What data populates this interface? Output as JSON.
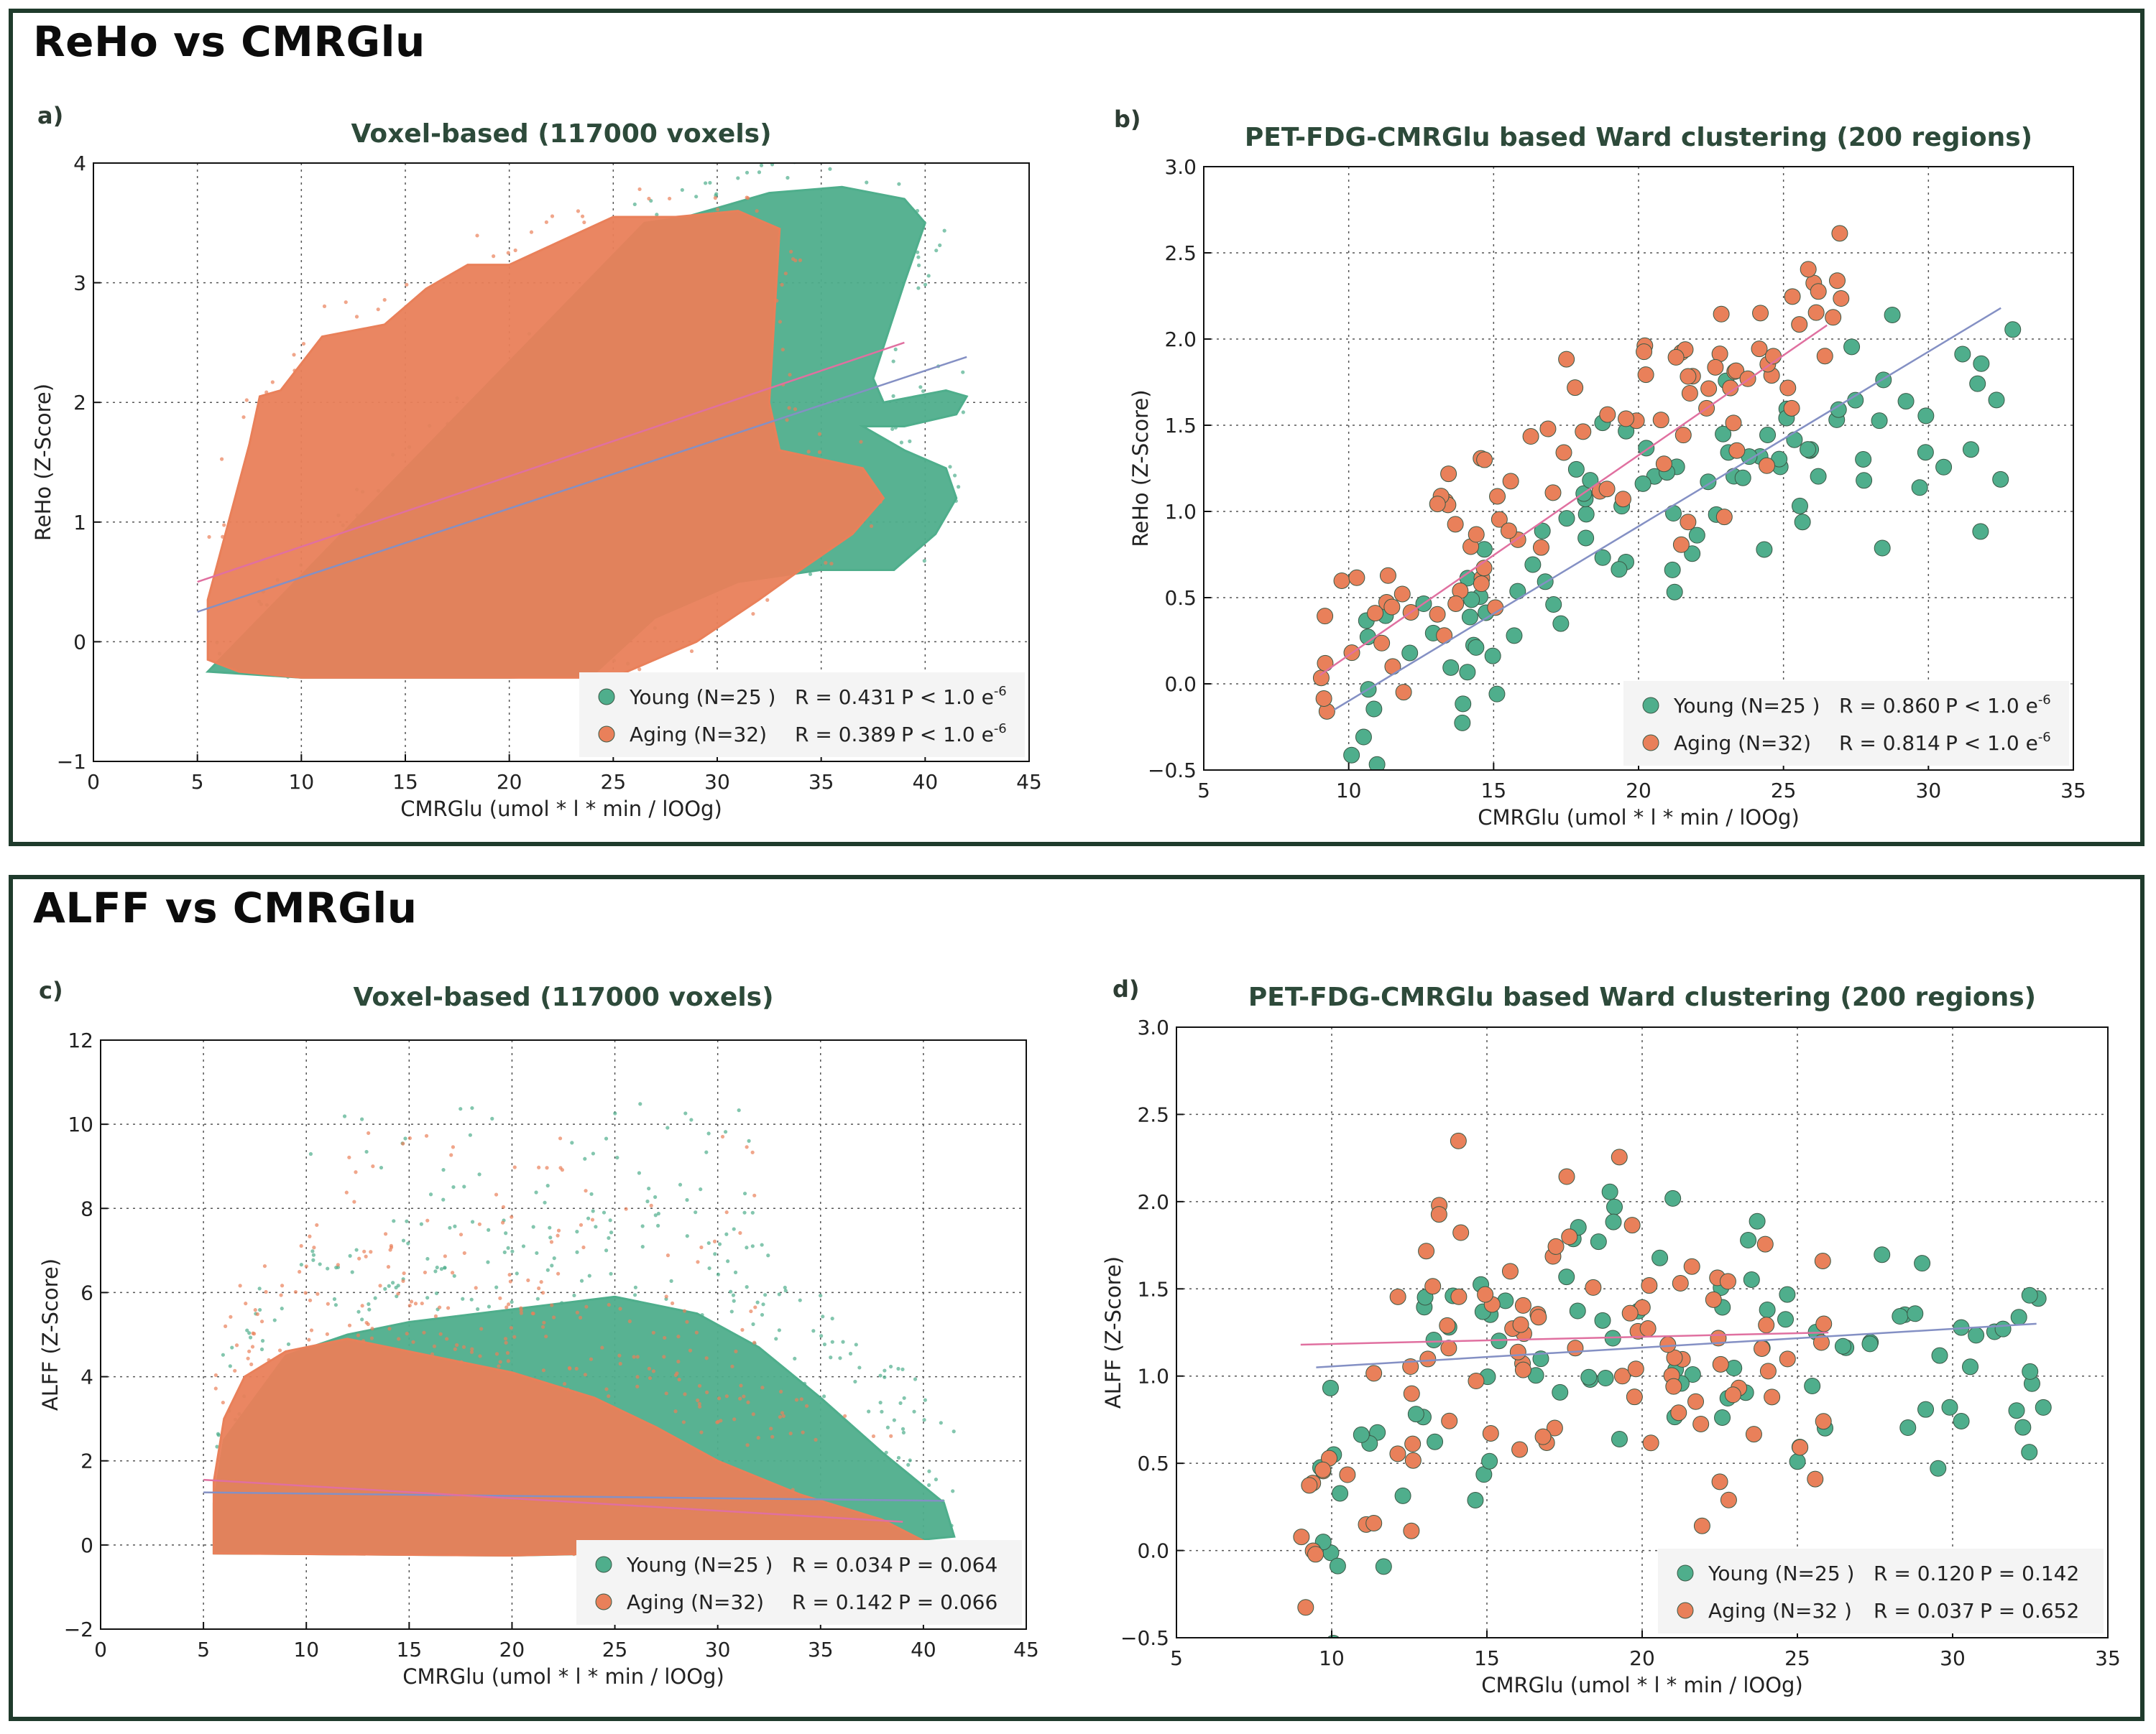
{
  "panels": [
    {
      "title": "ReHo vs CMRGlu"
    },
    {
      "title": "ALFF vs CMRGlu"
    }
  ],
  "colors": {
    "young": "#4fae8c",
    "aging": "#e9805a",
    "young_line": "#8490c4",
    "aging_line": "#e070a0",
    "frame": "#1f3b2c",
    "title_text": "#2d4a3a"
  },
  "chart_data": [
    {
      "type": "scatter",
      "letter": "a)",
      "title": "Voxel-based (117000 voxels)",
      "xlabel": "CMRGlu (umol * l * min / lOOg)",
      "ylabel": "ReHo (Z-Score)",
      "xlim": [
        0,
        45
      ],
      "ylim": [
        -1,
        4
      ],
      "xticks": [
        0,
        5,
        10,
        15,
        20,
        25,
        30,
        35,
        40,
        45
      ],
      "yticks": [
        -1,
        0,
        1,
        2,
        3,
        4
      ],
      "ytick_labels": [
        "−1",
        "0",
        "1",
        "2",
        "3",
        "4"
      ],
      "grid": true,
      "legend_position": "lower-right",
      "series": [
        {
          "name": "Young (N=25 )",
          "stat_r": "R = 0.431",
          "stat_p": "P < 1.0 e",
          "stat_exp": "-6",
          "marker": "dense",
          "cloud_outline": [
            [
              5.5,
              -0.25
            ],
            [
              10,
              -0.3
            ],
            [
              20,
              -0.3
            ],
            [
              24,
              -0.28
            ],
            [
              27,
              0.2
            ],
            [
              31,
              0.5
            ],
            [
              35,
              0.6
            ],
            [
              38.5,
              0.6
            ],
            [
              40.5,
              0.9
            ],
            [
              41.5,
              1.2
            ],
            [
              41,
              1.45
            ],
            [
              39,
              1.6
            ],
            [
              37,
              1.8
            ],
            [
              39,
              1.8
            ],
            [
              41.5,
              1.9
            ],
            [
              42,
              2.05
            ],
            [
              41,
              2.1
            ],
            [
              38,
              2.0
            ],
            [
              37.5,
              2.2
            ],
            [
              39,
              3.0
            ],
            [
              40,
              3.5
            ],
            [
              39,
              3.7
            ],
            [
              36,
              3.8
            ],
            [
              32.5,
              3.75
            ],
            [
              28.5,
              3.55
            ],
            [
              26.5,
              3.5
            ]
          ],
          "fit_line": [
            [
              5,
              0.25
            ],
            [
              42,
              2.38
            ]
          ]
        },
        {
          "name": "Aging (N=32)",
          "stat_r": "R = 0.389",
          "stat_p": "P < 1.0 e",
          "stat_exp": "-6",
          "marker": "dense",
          "cloud_outline": [
            [
              5.5,
              -0.15
            ],
            [
              7,
              -0.25
            ],
            [
              10,
              -0.3
            ],
            [
              20,
              -0.3
            ],
            [
              25,
              -0.3
            ],
            [
              29,
              0.0
            ],
            [
              32,
              0.35
            ],
            [
              34,
              0.6
            ],
            [
              36.5,
              0.9
            ],
            [
              38,
              1.2
            ],
            [
              37,
              1.45
            ],
            [
              33,
              1.6
            ],
            [
              32.5,
              2.0
            ],
            [
              33,
              3.45
            ],
            [
              31,
              3.6
            ],
            [
              28,
              3.55
            ],
            [
              25,
              3.55
            ],
            [
              22.5,
              3.35
            ],
            [
              20,
              3.15
            ],
            [
              18,
              3.15
            ],
            [
              16,
              2.95
            ],
            [
              14,
              2.65
            ],
            [
              11,
              2.55
            ],
            [
              9,
              2.1
            ],
            [
              8,
              2.05
            ],
            [
              7.5,
              1.65
            ],
            [
              6.5,
              1.0
            ],
            [
              5.5,
              0.35
            ]
          ],
          "fit_line": [
            [
              5,
              0.5
            ],
            [
              39,
              2.5
            ]
          ]
        }
      ]
    },
    {
      "type": "scatter",
      "letter": "b)",
      "title": "PET-FDG-CMRGlu based Ward clustering (200 regions)",
      "xlabel": "CMRGlu (umol * l * min / lOOg)",
      "ylabel": "ReHo (Z-Score)",
      "xlim": [
        5,
        35
      ],
      "ylim": [
        -0.5,
        3.0
      ],
      "xticks": [
        5,
        10,
        15,
        20,
        25,
        30,
        35
      ],
      "yticks": [
        -0.5,
        0.0,
        0.5,
        1.0,
        1.5,
        2.0,
        2.5,
        3.0
      ],
      "ytick_labels": [
        "−0.5",
        "0.0",
        "0.5",
        "1.0",
        "1.5",
        "2.0",
        "2.5",
        "3.0"
      ],
      "grid": true,
      "legend_position": "lower-right",
      "series": [
        {
          "name": "Young (N=25 )",
          "stat_r": "R = 0.860",
          "stat_p": "P < 1.0 e",
          "stat_exp": "-6",
          "marker": "circle",
          "point_count": 200,
          "trend": [
            [
              9.5,
              -0.15
            ],
            [
              15,
              0.45
            ],
            [
              20,
              1.05
            ],
            [
              25,
              1.35
            ],
            [
              30,
              1.6
            ],
            [
              33,
              1.45
            ]
          ],
          "spread": 0.28,
          "fit_line": [
            [
              9.5,
              -0.15
            ],
            [
              32.5,
              2.18
            ]
          ]
        },
        {
          "name": "Aging (N=32)",
          "stat_r": "R = 0.814",
          "stat_p": "P < 1.0 e",
          "stat_exp": "-6",
          "marker": "circle",
          "point_count": 200,
          "trend": [
            [
              9,
              0.05
            ],
            [
              13,
              0.55
            ],
            [
              17,
              1.15
            ],
            [
              20,
              1.5
            ],
            [
              24,
              1.75
            ],
            [
              27,
              2.2
            ]
          ],
          "spread": 0.3,
          "fit_line": [
            [
              9,
              0.05
            ],
            [
              26.5,
              2.08
            ]
          ]
        }
      ]
    },
    {
      "type": "scatter",
      "letter": "c)",
      "title": "Voxel-based (117000 voxels)",
      "xlabel": "CMRGlu (umol * l * min / lOOg)",
      "ylabel": "ALFF (Z-Score)",
      "xlim": [
        0,
        45
      ],
      "ylim": [
        -2,
        12
      ],
      "xticks": [
        0,
        5,
        10,
        15,
        20,
        25,
        30,
        35,
        40,
        45
      ],
      "yticks": [
        -2,
        0,
        2,
        4,
        6,
        8,
        10,
        12
      ],
      "ytick_labels": [
        "−2",
        "0",
        "2",
        "4",
        "6",
        "8",
        "10",
        "12"
      ],
      "grid": true,
      "legend_position": "lower-right",
      "series": [
        {
          "name": "Young (N=25 )",
          "stat_r": "R = 0.034",
          "stat_p": "P = 0.064",
          "stat_exp": "",
          "marker": "dense",
          "cloud_outline": [
            [
              5.5,
              -0.2
            ],
            [
              20,
              -0.25
            ],
            [
              35,
              -0.1
            ],
            [
              41.5,
              0.2
            ],
            [
              41,
              1.0
            ],
            [
              38,
              2.2
            ],
            [
              35,
              3.5
            ],
            [
              32,
              4.7
            ],
            [
              29,
              5.5
            ],
            [
              25,
              5.9
            ],
            [
              20,
              5.6
            ],
            [
              15,
              5.3
            ],
            [
              12,
              5.0
            ],
            [
              9,
              4.5
            ],
            [
              7.5,
              3.5
            ],
            [
              6,
              2.5
            ],
            [
              5.5,
              1.0
            ]
          ],
          "fit_line": [
            [
              5,
              1.25
            ],
            [
              41,
              1.05
            ]
          ]
        },
        {
          "name": "Aging (N=32)",
          "stat_r": "R = 0.142",
          "stat_p": "P = 0.066",
          "stat_exp": "",
          "marker": "dense",
          "cloud_outline": [
            [
              5.5,
              -0.2
            ],
            [
              20,
              -0.25
            ],
            [
              33,
              -0.1
            ],
            [
              40,
              0.1
            ],
            [
              38,
              0.6
            ],
            [
              34,
              1.2
            ],
            [
              30,
              2.0
            ],
            [
              27,
              2.8
            ],
            [
              24,
              3.5
            ],
            [
              20,
              4.1
            ],
            [
              15,
              4.6
            ],
            [
              12,
              4.9
            ],
            [
              9,
              4.6
            ],
            [
              7,
              4.0
            ],
            [
              6,
              3.0
            ],
            [
              5.5,
              1.5
            ]
          ],
          "fit_line": [
            [
              5,
              1.55
            ],
            [
              39,
              0.55
            ]
          ]
        }
      ]
    },
    {
      "type": "scatter",
      "letter": "d)",
      "title": "PET-FDG-CMRGlu based Ward clustering (200 regions)",
      "xlabel": "CMRGlu (umol * l * min / lOOg)",
      "ylabel": "ALFF (Z-Score)",
      "xlim": [
        5,
        35
      ],
      "ylim": [
        -0.5,
        3.0
      ],
      "xticks": [
        5,
        10,
        15,
        20,
        25,
        30,
        35
      ],
      "yticks": [
        -0.5,
        0.0,
        0.5,
        1.0,
        1.5,
        2.0,
        2.5,
        3.0
      ],
      "ytick_labels": [
        "−0.5",
        "0.0",
        "0.5",
        "1.0",
        "1.5",
        "2.0",
        "2.5",
        "3.0"
      ],
      "grid": true,
      "legend_position": "lower-right",
      "series": [
        {
          "name": "Young (N=25 )",
          "stat_r": "R = 0.120",
          "stat_p": "P = 0.142",
          "stat_exp": "",
          "marker": "circle",
          "point_count": 200,
          "trend": [
            [
              9.5,
              0.1
            ],
            [
              12,
              0.4
            ],
            [
              14,
              1.1
            ],
            [
              17,
              1.3
            ],
            [
              20,
              1.25
            ],
            [
              25,
              1.15
            ],
            [
              30,
              1.0
            ],
            [
              33,
              1.05
            ]
          ],
          "spread": 0.38,
          "fit_line": [
            [
              9.5,
              1.05
            ],
            [
              32.7,
              1.3
            ]
          ]
        },
        {
          "name": "Aging (N=32 )",
          "stat_r": "R = 0.037",
          "stat_p": "P = 0.652",
          "stat_exp": "",
          "marker": "circle",
          "point_count": 200,
          "trend": [
            [
              9,
              0.15
            ],
            [
              10.5,
              0.5
            ],
            [
              12,
              1.1
            ],
            [
              14,
              1.4
            ],
            [
              17,
              1.3
            ],
            [
              20,
              1.15
            ],
            [
              24,
              1.05
            ],
            [
              26,
              0.9
            ]
          ],
          "spread": 0.38,
          "fit_line": [
            [
              9,
              1.18
            ],
            [
              26,
              1.25
            ]
          ]
        }
      ]
    }
  ]
}
